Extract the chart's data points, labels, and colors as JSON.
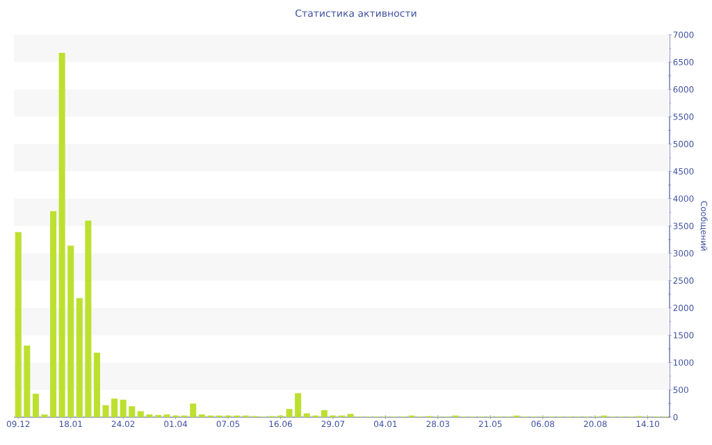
{
  "chart_data": {
    "type": "bar",
    "title": "Статистика активности",
    "ylabel": "Сообщений",
    "categories": [
      "09.12",
      null,
      null,
      null,
      null,
      null,
      "18.01",
      null,
      null,
      null,
      null,
      null,
      "24.02",
      null,
      null,
      null,
      null,
      null,
      "01.04",
      null,
      null,
      null,
      null,
      null,
      "07.05",
      null,
      null,
      null,
      null,
      null,
      "16.06",
      null,
      null,
      null,
      null,
      null,
      "29.07",
      null,
      null,
      null,
      null,
      null,
      "04.01",
      null,
      null,
      null,
      null,
      null,
      "28.03",
      null,
      null,
      null,
      null,
      null,
      "21.05",
      null,
      null,
      null,
      null,
      null,
      "06.08",
      null,
      null,
      null,
      null,
      null,
      "20.08",
      null,
      null,
      null,
      null,
      null,
      "14.10",
      null,
      null
    ],
    "values": [
      3390,
      1310,
      430,
      50,
      3770,
      6670,
      3140,
      2180,
      3600,
      1180,
      220,
      340,
      320,
      200,
      110,
      50,
      40,
      50,
      30,
      30,
      250,
      50,
      30,
      30,
      30,
      30,
      30,
      20,
      10,
      20,
      30,
      150,
      440,
      70,
      30,
      130,
      30,
      30,
      60,
      10,
      10,
      10,
      10,
      10,
      10,
      30,
      10,
      20,
      10,
      10,
      30,
      10,
      10,
      10,
      10,
      10,
      10,
      30,
      10,
      10,
      10,
      10,
      10,
      10,
      10,
      10,
      10,
      30,
      10,
      10,
      10,
      20,
      10,
      10,
      10
    ],
    "color": "#bde030",
    "ylim": [
      0,
      7000
    ],
    "yticks": [
      0,
      {
        "value": 250,
        "label": null
      },
      500,
      {
        "value": 750,
        "label": null
      },
      1000,
      {
        "value": 1250,
        "label": null
      },
      1500,
      {
        "value": 1750,
        "label": null
      },
      2000,
      {
        "value": 2250,
        "label": null
      },
      2500,
      {
        "value": 2750,
        "label": null
      },
      3000,
      {
        "value": 3250,
        "label": null
      },
      3500,
      {
        "value": 3750,
        "label": null
      },
      4000,
      {
        "value": 4250,
        "label": null
      },
      4500,
      {
        "value": 4750,
        "label": null
      },
      5000,
      {
        "value": 5250,
        "label": null
      },
      5500,
      {
        "value": 5750,
        "label": null
      },
      6000,
      {
        "value": 6250,
        "label": null
      },
      6500,
      {
        "value": 6750,
        "label": null
      },
      7000
    ],
    "bands": [
      {
        "axis": "y",
        "from": 500,
        "to": 1000,
        "color": "#f7f7f7"
      },
      {
        "axis": "y",
        "from": 1500,
        "to": 2000,
        "color": "#f7f7f7"
      },
      {
        "axis": "y",
        "from": 2500,
        "to": 3000,
        "color": "#f7f7f7"
      },
      {
        "axis": "y",
        "from": 3500,
        "to": 4000,
        "color": "#f7f7f7"
      },
      {
        "axis": "y",
        "from": 4500,
        "to": 5000,
        "color": "#f7f7f7"
      },
      {
        "axis": "y",
        "from": 5500,
        "to": 6000,
        "color": "#f7f7f7"
      },
      {
        "axis": "y",
        "from": 6500,
        "to": 7000,
        "color": "#f7f7f7"
      }
    ]
  }
}
